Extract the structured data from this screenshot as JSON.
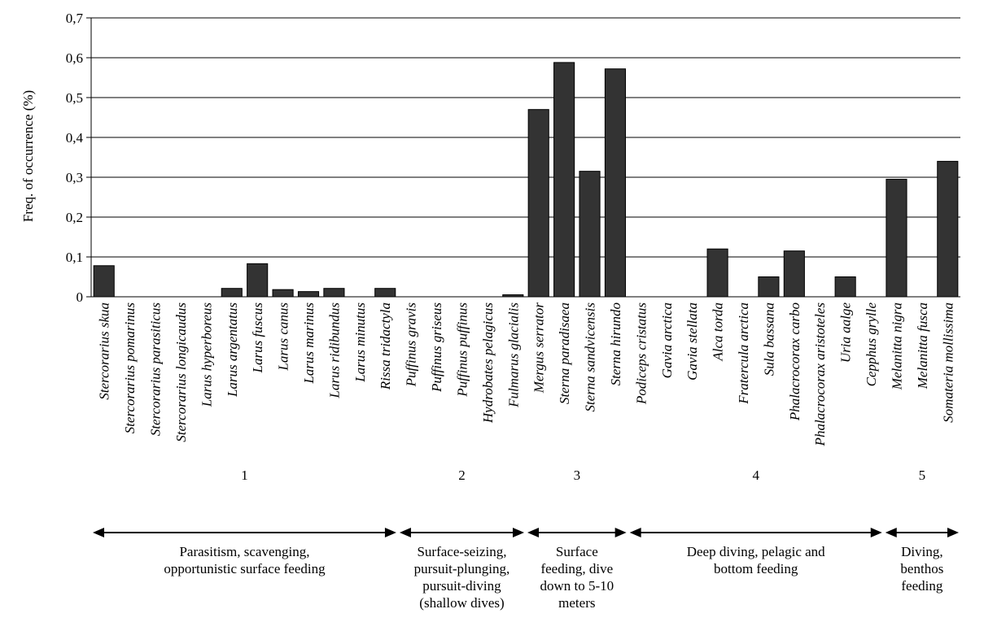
{
  "chart_data": {
    "type": "bar",
    "ylabel": "Freq. of occurrence (%)",
    "ylim": [
      0,
      0.7
    ],
    "yticks": [
      0,
      0.1,
      0.2,
      0.3,
      0.4,
      0.5,
      0.6,
      0.7
    ],
    "ytick_labels": [
      "0",
      "0,1",
      "0,2",
      "0,3",
      "0,4",
      "0,5",
      "0,6",
      "0,7"
    ],
    "grid": true,
    "bar_color": "#333333",
    "categories": [
      "Stercorarius skua",
      "Stercorarius pomarinus",
      "Stercorarius parasiticus",
      "Stercorarius longicaudus",
      "Larus hyperboreus",
      "Larus argentatus",
      "Larus fuscus",
      "Larus canus",
      "Larus marinus",
      "Larus ridibundus",
      "Larus minutus",
      "Rissa tridactyla",
      "Puffinus gravis",
      "Puffinus griseus",
      "Puffinus puffinus",
      "Hydrobates pelagicus",
      "Fulmarus glacialis",
      "Mergus serrator",
      "Sterna paradisaea",
      "Sterna sandvicensis",
      "Sterna hirundo",
      "Podiceps cristatus",
      "Gavia arctica",
      "Gavia stellata",
      "Alca torda",
      "Fratercula arctica",
      "Sula bassana",
      "Phalacrocorax carbo",
      "Phalacrocorax aristoteles",
      "Uria aalge",
      "Cepphus grylle",
      "Melanitta nigra",
      "Melanitta fusca",
      "Somateria mollissima"
    ],
    "values": [
      0.078,
      0,
      0,
      0,
      0,
      0.021,
      0.083,
      0.018,
      0.013,
      0.021,
      0,
      0.021,
      0,
      0,
      0,
      0,
      0.005,
      0.47,
      0.588,
      0.315,
      0.572,
      0,
      0,
      0,
      0.12,
      0,
      0.05,
      0.115,
      0,
      0.05,
      0,
      0.295,
      0,
      0.34
    ],
    "groups": [
      {
        "number": "1",
        "start": 0,
        "end": 11,
        "description": [
          "Parasitism, scavenging,",
          "opportunistic surface feeding"
        ]
      },
      {
        "number": "2",
        "start": 12,
        "end": 16,
        "description": [
          "Surface-seizing,",
          "pursuit-plunging,",
          "pursuit-diving",
          "(shallow dives)"
        ]
      },
      {
        "number": "3",
        "start": 17,
        "end": 20,
        "description": [
          "Surface",
          "feeding, dive",
          "down to 5-10",
          "meters"
        ]
      },
      {
        "number": "4",
        "start": 21,
        "end": 30,
        "description": [
          "Deep diving, pelagic and",
          "bottom feeding"
        ]
      },
      {
        "number": "5",
        "start": 31,
        "end": 33,
        "description": [
          "Diving,",
          "benthos",
          "feeding"
        ]
      }
    ]
  }
}
